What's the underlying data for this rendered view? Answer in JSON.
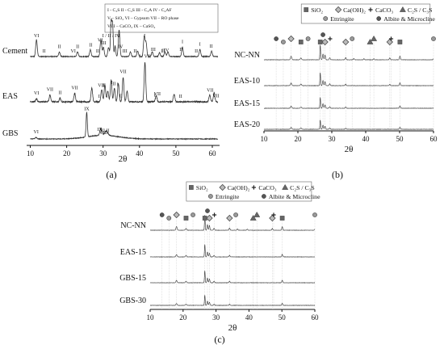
{
  "panels": [
    {
      "id": "a",
      "label": "(a)",
      "xlabel": "2θ",
      "xticks": [
        10,
        20,
        30,
        40,
        50,
        60
      ],
      "legend_lines": [
        "I - C₃S   II - C₂S   III - C₃A   IV - C₄AF",
        "V – SiO₂   VI – Gypsum   VII – RO phase",
        "VIII – CaCO₃   IX – CaSO₄"
      ],
      "traces": [
        {
          "name": "Cement",
          "seed": 11,
          "noise": 0.5,
          "peaks": [
            [
              11.7,
              22,
              0.3
            ],
            [
              18.0,
              6,
              0.3
            ],
            [
              23.0,
              6,
              0.3
            ],
            [
              26.5,
              9,
              0.3
            ],
            [
              29.4,
              22,
              0.3
            ],
            [
              30.1,
              12,
              0.3
            ],
            [
              31.5,
              12,
              0.3
            ],
            [
              32.2,
              45,
              0.25
            ],
            [
              32.6,
              42,
              0.25
            ],
            [
              33.3,
              14,
              0.25
            ],
            [
              34.4,
              35,
              0.3
            ],
            [
              37.5,
              6,
              0.3
            ],
            [
              39.5,
              7,
              0.3
            ],
            [
              41.3,
              26,
              0.3
            ],
            [
              41.8,
              18,
              0.3
            ],
            [
              43.5,
              6,
              0.3
            ],
            [
              45.5,
              5,
              0.3
            ],
            [
              47.0,
              6,
              0.3
            ],
            [
              47.8,
              6,
              0.3
            ],
            [
              51.8,
              12,
              0.3
            ],
            [
              56.6,
              9,
              0.3
            ],
            [
              59.8,
              7,
              0.3
            ]
          ],
          "markers": [
            [
              "VI",
              11.7
            ],
            [
              "II",
              13.8
            ],
            [
              "II",
              18.0
            ],
            [
              "VI",
              21.8
            ],
            [
              "II",
              23.0
            ],
            [
              "II",
              26.6
            ],
            [
              "II",
              28.5
            ],
            [
              "VI",
              29.2
            ],
            [
              "III",
              30.2
            ],
            [
              "I / II / IV",
              32.2
            ],
            [
              "I",
              34.4
            ],
            [
              "IV",
              34.8
            ],
            [
              "III",
              36.0
            ],
            [
              "I",
              41.4
            ],
            [
              "II",
              38.8
            ],
            [
              "III",
              43.8
            ],
            [
              "I",
              46.2
            ],
            [
              "II",
              46.5
            ],
            [
              "IV",
              47.4
            ],
            [
              "I",
              51.8
            ],
            [
              "II",
              51.4
            ],
            [
              "II",
              55.6
            ],
            [
              "I",
              56.6
            ],
            [
              "II",
              59.7
            ]
          ]
        },
        {
          "name": "EAS",
          "seed": 23,
          "noise": 0.9,
          "peaks": [
            [
              11.7,
              4,
              0.3
            ],
            [
              15.4,
              9,
              0.3
            ],
            [
              18.2,
              5,
              0.3
            ],
            [
              22.2,
              11,
              0.3
            ],
            [
              26.9,
              18,
              0.3
            ],
            [
              29.6,
              16,
              0.3
            ],
            [
              30.5,
              22,
              0.3
            ],
            [
              31.3,
              14,
              0.3
            ],
            [
              32.2,
              28,
              0.3
            ],
            [
              33.1,
              18,
              0.3
            ],
            [
              34.2,
              24,
              0.3
            ],
            [
              35.5,
              32,
              0.3
            ],
            [
              36.6,
              14,
              0.3
            ],
            [
              41.5,
              52,
              0.3
            ],
            [
              44.6,
              8,
              0.3
            ],
            [
              49.5,
              10,
              0.3
            ],
            [
              59.3,
              9,
              0.3
            ],
            [
              60.5,
              12,
              0.3
            ]
          ],
          "markers": [
            [
              "VI",
              11.7
            ],
            [
              "VII",
              15.4
            ],
            [
              "II",
              18.2
            ],
            [
              "VII",
              22.2
            ],
            [
              "I",
              28.9
            ],
            [
              "VII",
              29.5
            ],
            [
              "II",
              30.3
            ],
            [
              "I",
              32.4
            ],
            [
              "II",
              33.0
            ],
            [
              "I",
              34.0
            ],
            [
              "VII",
              35.5
            ],
            [
              "II",
              34.9
            ],
            [
              "I / VII",
              41.5
            ],
            [
              "I",
              44.2
            ],
            [
              "VII",
              44.9
            ],
            [
              "II",
              51.3
            ],
            [
              "VII",
              59.4
            ],
            [
              "VII",
              61.0
            ]
          ]
        },
        {
          "name": "GBS",
          "seed": 37,
          "noise": 0.5,
          "peaks": [
            [
              11.6,
              2,
              0.4
            ],
            [
              25.5,
              34,
              0.25
            ],
            [
              29.4,
              10,
              0.4
            ],
            [
              30.9,
              6,
              0.6
            ]
          ],
          "markers": [
            [
              "VI",
              11.6
            ],
            [
              "IX",
              25.5
            ],
            [
              "VI",
              29.8
            ],
            [
              "VIII",
              30.1
            ],
            [
              "IX",
              29.1
            ],
            [
              "II",
              31.3
            ]
          ],
          "hump": true
        }
      ]
    },
    {
      "id": "b",
      "label": "(b)",
      "xlabel": "2θ",
      "xticks": [
        10,
        20,
        30,
        40,
        50,
        60
      ],
      "legend_items": [
        {
          "symbol": "square",
          "label": "SiO₂"
        },
        {
          "symbol": "diamond",
          "label": "Ca(OH)₂"
        },
        {
          "symbol": "plus",
          "label": "CaCO₃"
        },
        {
          "symbol": "triangle",
          "label": "C₂S / C₃S"
        },
        {
          "symbol": "circle",
          "label": "Ettringite"
        },
        {
          "symbol": "dot",
          "label": "Albite & Microcline"
        }
      ],
      "traces": [
        {
          "name": "NC-NN",
          "seed": 51,
          "noise": 0.6,
          "peaks": [
            [
              18.0,
              14,
              0.25
            ],
            [
              20.9,
              7,
              0.25
            ],
            [
              26.6,
              58,
              0.15
            ],
            [
              27.4,
              22,
              0.2
            ],
            [
              28.0,
              18,
              0.2
            ],
            [
              29.4,
              8,
              0.2
            ],
            [
              34.1,
              9,
              0.2
            ],
            [
              36.5,
              5,
              0.2
            ],
            [
              39.5,
              4,
              0.2
            ],
            [
              42.4,
              4,
              0.2
            ],
            [
              47.1,
              7,
              0.2
            ],
            [
              50.1,
              14,
              0.2
            ],
            [
              60.0,
              4,
              0.2
            ]
          ]
        },
        {
          "name": "EAS-10",
          "seed": 63,
          "noise": 0.6,
          "peaks": [
            [
              18.0,
              10,
              0.25
            ],
            [
              20.9,
              6,
              0.25
            ],
            [
              26.6,
              50,
              0.15
            ],
            [
              27.4,
              20,
              0.2
            ],
            [
              28.0,
              15,
              0.2
            ],
            [
              29.4,
              7,
              0.2
            ],
            [
              34.1,
              6,
              0.2
            ],
            [
              47.1,
              5,
              0.2
            ],
            [
              50.1,
              11,
              0.2
            ]
          ]
        },
        {
          "name": "EAS-15",
          "seed": 71,
          "noise": 0.6,
          "peaks": [
            [
              18.0,
              8,
              0.25
            ],
            [
              20.9,
              5,
              0.25
            ],
            [
              26.6,
              42,
              0.15
            ],
            [
              27.4,
              18,
              0.2
            ],
            [
              28.0,
              13,
              0.2
            ],
            [
              29.4,
              6,
              0.2
            ],
            [
              34.1,
              5,
              0.2
            ],
            [
              50.1,
              9,
              0.2
            ]
          ]
        },
        {
          "name": "EAS-20",
          "seed": 83,
          "noise": 0.6,
          "peaks": [
            [
              18.0,
              7,
              0.25
            ],
            [
              20.9,
              5,
              0.25
            ],
            [
              26.6,
              36,
              0.15
            ],
            [
              27.4,
              16,
              0.2
            ],
            [
              28.0,
              12,
              0.2
            ],
            [
              29.4,
              5,
              0.2
            ],
            [
              34.1,
              4,
              0.2
            ],
            [
              50.1,
              8,
              0.2
            ]
          ]
        }
      ],
      "symbol_markers": [
        [
          "dot",
          13.6
        ],
        [
          "circle",
          15.7
        ],
        [
          "diamond",
          18.0
        ],
        [
          "square",
          20.9
        ],
        [
          "circle",
          23.0
        ],
        [
          "square",
          26.6
        ],
        [
          "dot",
          27.4
        ],
        [
          "diamond",
          28.0
        ],
        [
          "plus",
          29.5
        ],
        [
          "diamond",
          34.1
        ],
        [
          "circle",
          36.0
        ],
        [
          "triangle",
          41.3
        ],
        [
          "triangle",
          42.4
        ],
        [
          "diamond",
          47.1
        ],
        [
          "plus",
          47.5
        ],
        [
          "square",
          50.1
        ],
        [
          "circle",
          60.0
        ]
      ]
    },
    {
      "id": "c",
      "label": "(c)",
      "xlabel": "2θ",
      "xticks": [
        10,
        20,
        30,
        40,
        50,
        60
      ],
      "legend_items": [
        {
          "symbol": "square",
          "label": "SiO₂"
        },
        {
          "symbol": "diamond",
          "label": "Ca(OH)₂"
        },
        {
          "symbol": "plus",
          "label": "CaCO₃"
        },
        {
          "symbol": "triangle",
          "label": "C₂S / C₃S"
        },
        {
          "symbol": "circle",
          "label": "Ettringite"
        },
        {
          "symbol": "dot",
          "label": "Albite & Microcline"
        }
      ],
      "traces": [
        {
          "name": "NC-NN",
          "seed": 91,
          "noise": 0.6,
          "peaks": [
            [
              18.0,
              14,
              0.25
            ],
            [
              20.9,
              7,
              0.25
            ],
            [
              26.6,
              58,
              0.15
            ],
            [
              27.4,
              22,
              0.2
            ],
            [
              28.0,
              18,
              0.2
            ],
            [
              29.4,
              8,
              0.2
            ],
            [
              34.1,
              9,
              0.2
            ],
            [
              36.5,
              5,
              0.2
            ],
            [
              39.5,
              4,
              0.2
            ],
            [
              47.1,
              7,
              0.2
            ],
            [
              50.1,
              14,
              0.2
            ],
            [
              60.0,
              4,
              0.2
            ]
          ]
        },
        {
          "name": "EAS-15",
          "seed": 103,
          "noise": 0.6,
          "peaks": [
            [
              18.0,
              9,
              0.25
            ],
            [
              20.9,
              6,
              0.25
            ],
            [
              26.6,
              48,
              0.15
            ],
            [
              27.4,
              19,
              0.2
            ],
            [
              28.0,
              14,
              0.2
            ],
            [
              29.4,
              6,
              0.2
            ],
            [
              34.1,
              6,
              0.2
            ],
            [
              50.1,
              10,
              0.2
            ]
          ]
        },
        {
          "name": "GBS-15",
          "seed": 117,
          "noise": 0.6,
          "peaks": [
            [
              18.0,
              9,
              0.25
            ],
            [
              20.9,
              6,
              0.25
            ],
            [
              26.6,
              46,
              0.15
            ],
            [
              27.4,
              18,
              0.2
            ],
            [
              28.0,
              14,
              0.2
            ],
            [
              29.4,
              6,
              0.2
            ],
            [
              34.1,
              6,
              0.2
            ],
            [
              50.1,
              10,
              0.2
            ]
          ]
        },
        {
          "name": "GBS-30",
          "seed": 129,
          "noise": 0.6,
          "peaks": [
            [
              18.0,
              7,
              0.25
            ],
            [
              20.9,
              5,
              0.25
            ],
            [
              26.6,
              40,
              0.15
            ],
            [
              27.4,
              16,
              0.2
            ],
            [
              28.0,
              12,
              0.2
            ],
            [
              29.4,
              5,
              0.2
            ],
            [
              34.1,
              5,
              0.2
            ],
            [
              50.1,
              8,
              0.2
            ]
          ]
        }
      ],
      "symbol_markers": [
        [
          "dot",
          13.6
        ],
        [
          "circle",
          15.7
        ],
        [
          "diamond",
          18.0
        ],
        [
          "square",
          20.9
        ],
        [
          "circle",
          23.0
        ],
        [
          "square",
          26.6
        ],
        [
          "dot",
          27.4
        ],
        [
          "diamond",
          28.0
        ],
        [
          "plus",
          29.5
        ],
        [
          "diamond",
          34.1
        ],
        [
          "circle",
          36.0
        ],
        [
          "triangle",
          41.3
        ],
        [
          "triangle",
          42.4
        ],
        [
          "diamond",
          47.1
        ],
        [
          "plus",
          47.5
        ],
        [
          "square",
          50.1
        ],
        [
          "circle",
          60.0
        ]
      ]
    }
  ],
  "chart_data": [
    {
      "type": "line",
      "panel": "(a)",
      "xlabel": "2θ",
      "xlim": [
        10,
        62
      ],
      "series": [
        {
          "name": "Cement"
        },
        {
          "name": "EAS"
        },
        {
          "name": "GBS"
        }
      ],
      "legend": "top-right"
    },
    {
      "type": "line",
      "panel": "(b)",
      "xlabel": "2θ",
      "xlim": [
        10,
        60
      ],
      "series": [
        {
          "name": "NC-NN"
        },
        {
          "name": "EAS-10"
        },
        {
          "name": "EAS-15"
        },
        {
          "name": "EAS-20"
        }
      ],
      "legend": "top"
    },
    {
      "type": "line",
      "panel": "(c)",
      "xlabel": "2θ",
      "xlim": [
        10,
        60
      ],
      "series": [
        {
          "name": "NC-NN"
        },
        {
          "name": "EAS-15"
        },
        {
          "name": "GBS-15"
        },
        {
          "name": "GBS-30"
        }
      ],
      "legend": "top"
    }
  ],
  "colors": {
    "trace": "#333333",
    "grid": "#bbbbbb",
    "marker": "#666666",
    "axis": "#111111"
  }
}
